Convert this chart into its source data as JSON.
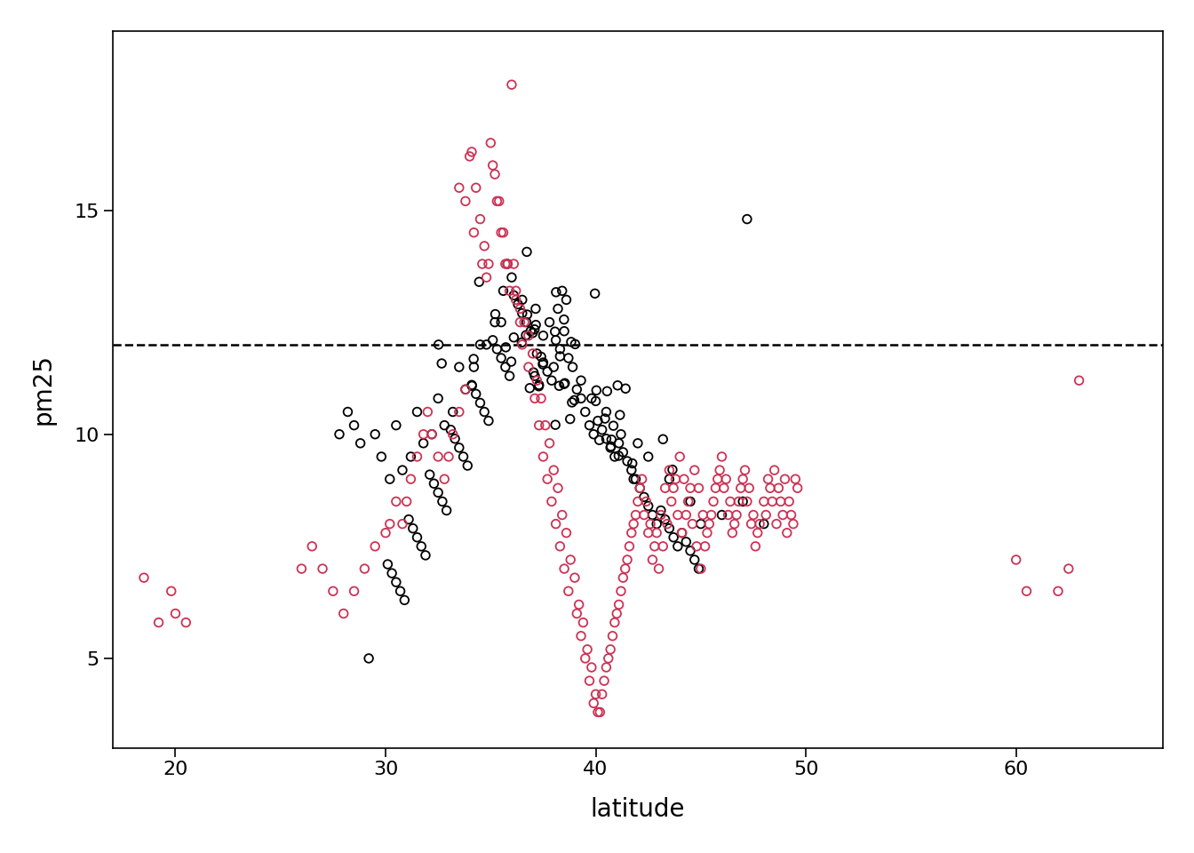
{
  "title": "",
  "xlabel": "latitude",
  "ylabel": "pm25",
  "xlim": [
    17,
    67
  ],
  "ylim": [
    3,
    19
  ],
  "xticks": [
    20,
    30,
    40,
    50,
    60
  ],
  "yticks": [
    5,
    10,
    15
  ],
  "hline_y": 12,
  "hline_style": "--",
  "hline_color": "#000000",
  "marker_size": 48,
  "marker_linewidth": 1.3,
  "background_color": "#ffffff",
  "east_color": "#000000",
  "west_color": "#cc3355",
  "east_points": [
    [
      34.19,
      11.68
    ],
    [
      35.72,
      11.94
    ],
    [
      40.75,
      9.88
    ],
    [
      37.29,
      11.07
    ],
    [
      38.49,
      12.56
    ],
    [
      41.42,
      11.02
    ],
    [
      38.08,
      10.21
    ],
    [
      32.67,
      11.58
    ],
    [
      36.1,
      12.16
    ],
    [
      41.09,
      9.52
    ],
    [
      39.96,
      13.14
    ],
    [
      36.74,
      12.67
    ],
    [
      43.65,
      9.21
    ],
    [
      37.48,
      11.56
    ],
    [
      36.86,
      11.03
    ],
    [
      43.2,
      9.89
    ],
    [
      32.52,
      12.0
    ],
    [
      40.54,
      10.96
    ],
    [
      38.49,
      11.12
    ],
    [
      36.72,
      14.07
    ],
    [
      34.11,
      11.08
    ],
    [
      41.74,
      9.35
    ],
    [
      37.0,
      12.26
    ],
    [
      37.14,
      12.8
    ],
    [
      39.02,
      12.01
    ],
    [
      38.11,
      13.17
    ],
    [
      38.06,
      12.29
    ],
    [
      36.68,
      12.21
    ],
    [
      38.3,
      11.74
    ],
    [
      38.98,
      10.76
    ],
    [
      40.03,
      10.98
    ],
    [
      38.83,
      12.06
    ],
    [
      37.4,
      11.73
    ],
    [
      41.15,
      10.43
    ],
    [
      38.26,
      11.08
    ],
    [
      40.0,
      10.74
    ],
    [
      37.04,
      11.38
    ],
    [
      40.72,
      9.73
    ],
    [
      37.15,
      12.44
    ],
    [
      40.44,
      10.35
    ],
    [
      35.98,
      11.62
    ],
    [
      34.45,
      13.4
    ],
    [
      41.04,
      11.09
    ],
    [
      37.09,
      12.34
    ],
    [
      38.87,
      10.71
    ],
    [
      35.22,
      12.68
    ],
    [
      38.78,
      10.34
    ],
    [
      40.84,
      10.19
    ],
    [
      40.17,
      9.87
    ],
    [
      38.53,
      11.14
    ],
    [
      36.48,
      12.05
    ],
    [
      41.8,
      9.0
    ],
    [
      38.0,
      11.5
    ],
    [
      37.5,
      12.2
    ],
    [
      36.5,
      13.0
    ],
    [
      35.5,
      12.5
    ],
    [
      34.5,
      12.0
    ],
    [
      33.5,
      11.5
    ],
    [
      32.5,
      10.8
    ],
    [
      31.5,
      10.5
    ],
    [
      30.5,
      10.2
    ],
    [
      29.5,
      10.0
    ],
    [
      42.5,
      9.5
    ],
    [
      43.5,
      9.0
    ],
    [
      44.5,
      8.5
    ],
    [
      45.0,
      8.0
    ],
    [
      46.0,
      8.2
    ],
    [
      47.0,
      8.5
    ],
    [
      48.0,
      8.0
    ],
    [
      38.2,
      12.8
    ],
    [
      38.4,
      13.2
    ],
    [
      38.6,
      13.0
    ],
    [
      37.8,
      12.5
    ],
    [
      37.2,
      11.8
    ],
    [
      39.3,
      11.2
    ],
    [
      39.8,
      10.8
    ],
    [
      40.5,
      10.5
    ],
    [
      41.2,
      10.0
    ],
    [
      42.0,
      9.8
    ],
    [
      36.0,
      13.5
    ],
    [
      35.8,
      13.8
    ],
    [
      35.6,
      13.2
    ],
    [
      35.2,
      12.5
    ],
    [
      34.8,
      12.0
    ],
    [
      34.2,
      11.5
    ],
    [
      33.8,
      11.0
    ],
    [
      33.2,
      10.5
    ],
    [
      32.8,
      10.2
    ],
    [
      32.2,
      10.0
    ],
    [
      31.8,
      9.8
    ],
    [
      31.2,
      9.5
    ],
    [
      30.8,
      9.2
    ],
    [
      30.2,
      9.0
    ],
    [
      29.8,
      9.5
    ],
    [
      29.2,
      5.0
    ],
    [
      47.2,
      14.8
    ],
    [
      38.1,
      12.1
    ],
    [
      38.3,
      11.9
    ],
    [
      38.5,
      12.3
    ],
    [
      38.7,
      11.7
    ],
    [
      38.9,
      11.5
    ],
    [
      39.1,
      11.0
    ],
    [
      39.3,
      10.8
    ],
    [
      39.5,
      10.5
    ],
    [
      39.7,
      10.2
    ],
    [
      39.9,
      10.0
    ],
    [
      40.1,
      10.3
    ],
    [
      40.3,
      10.1
    ],
    [
      40.5,
      9.9
    ],
    [
      40.7,
      9.7
    ],
    [
      40.9,
      9.5
    ],
    [
      41.1,
      9.8
    ],
    [
      41.3,
      9.6
    ],
    [
      41.5,
      9.4
    ],
    [
      41.7,
      9.2
    ],
    [
      41.9,
      9.0
    ],
    [
      42.1,
      8.8
    ],
    [
      42.3,
      8.6
    ],
    [
      42.5,
      8.4
    ],
    [
      42.7,
      8.2
    ],
    [
      42.9,
      8.0
    ],
    [
      43.1,
      8.3
    ],
    [
      43.3,
      8.1
    ],
    [
      43.5,
      7.9
    ],
    [
      43.7,
      7.7
    ],
    [
      43.9,
      7.5
    ],
    [
      44.1,
      7.8
    ],
    [
      44.3,
      7.6
    ],
    [
      44.5,
      7.4
    ],
    [
      44.7,
      7.2
    ],
    [
      44.9,
      7.0
    ],
    [
      37.1,
      11.3
    ],
    [
      37.3,
      11.1
    ],
    [
      37.5,
      11.6
    ],
    [
      37.7,
      11.4
    ],
    [
      37.9,
      11.2
    ],
    [
      36.1,
      13.1
    ],
    [
      36.3,
      12.9
    ],
    [
      36.5,
      12.7
    ],
    [
      36.7,
      12.5
    ],
    [
      36.9,
      12.3
    ],
    [
      35.1,
      12.1
    ],
    [
      35.3,
      11.9
    ],
    [
      35.5,
      11.7
    ],
    [
      35.7,
      11.5
    ],
    [
      35.9,
      11.3
    ],
    [
      34.1,
      11.1
    ],
    [
      34.3,
      10.9
    ],
    [
      34.5,
      10.7
    ],
    [
      34.7,
      10.5
    ],
    [
      34.9,
      10.3
    ],
    [
      33.1,
      10.1
    ],
    [
      33.3,
      9.9
    ],
    [
      33.5,
      9.7
    ],
    [
      33.7,
      9.5
    ],
    [
      33.9,
      9.3
    ],
    [
      32.1,
      9.1
    ],
    [
      32.3,
      8.9
    ],
    [
      32.5,
      8.7
    ],
    [
      32.7,
      8.5
    ],
    [
      32.9,
      8.3
    ],
    [
      31.1,
      8.1
    ],
    [
      31.3,
      7.9
    ],
    [
      31.5,
      7.7
    ],
    [
      31.7,
      7.5
    ],
    [
      31.9,
      7.3
    ],
    [
      30.1,
      7.1
    ],
    [
      30.3,
      6.9
    ],
    [
      30.5,
      6.7
    ],
    [
      30.7,
      6.5
    ],
    [
      30.9,
      6.3
    ],
    [
      28.5,
      10.2
    ],
    [
      28.8,
      9.8
    ],
    [
      28.2,
      10.5
    ],
    [
      27.8,
      10.0
    ]
  ],
  "west_points": [
    [
      18.5,
      6.8
    ],
    [
      19.2,
      5.8
    ],
    [
      19.8,
      6.5
    ],
    [
      20.0,
      6.0
    ],
    [
      20.5,
      5.8
    ],
    [
      33.5,
      15.5
    ],
    [
      33.8,
      15.2
    ],
    [
      34.0,
      16.2
    ],
    [
      34.1,
      16.3
    ],
    [
      34.3,
      15.5
    ],
    [
      34.5,
      14.8
    ],
    [
      34.7,
      14.2
    ],
    [
      34.9,
      13.8
    ],
    [
      35.0,
      16.5
    ],
    [
      35.1,
      16.0
    ],
    [
      35.2,
      15.8
    ],
    [
      35.3,
      15.2
    ],
    [
      35.5,
      14.5
    ],
    [
      35.7,
      13.8
    ],
    [
      35.9,
      13.2
    ],
    [
      36.0,
      17.8
    ],
    [
      36.1,
      13.8
    ],
    [
      36.2,
      13.2
    ],
    [
      36.4,
      12.8
    ],
    [
      36.6,
      12.5
    ],
    [
      36.8,
      12.2
    ],
    [
      37.0,
      11.8
    ],
    [
      37.2,
      11.2
    ],
    [
      37.4,
      10.8
    ],
    [
      37.6,
      10.2
    ],
    [
      37.8,
      9.8
    ],
    [
      38.0,
      9.2
    ],
    [
      38.2,
      8.8
    ],
    [
      38.4,
      8.2
    ],
    [
      38.6,
      7.8
    ],
    [
      38.8,
      7.2
    ],
    [
      39.0,
      6.8
    ],
    [
      39.2,
      6.2
    ],
    [
      39.4,
      5.8
    ],
    [
      39.6,
      5.2
    ],
    [
      39.8,
      4.8
    ],
    [
      40.0,
      4.2
    ],
    [
      40.2,
      3.8
    ],
    [
      40.4,
      4.5
    ],
    [
      40.6,
      5.0
    ],
    [
      40.8,
      5.5
    ],
    [
      41.0,
      6.0
    ],
    [
      41.2,
      6.5
    ],
    [
      41.4,
      7.0
    ],
    [
      41.6,
      7.5
    ],
    [
      41.8,
      8.0
    ],
    [
      42.0,
      8.5
    ],
    [
      42.2,
      9.0
    ],
    [
      42.4,
      8.5
    ],
    [
      42.6,
      8.0
    ],
    [
      42.8,
      7.5
    ],
    [
      43.0,
      7.0
    ],
    [
      43.2,
      7.5
    ],
    [
      43.4,
      8.0
    ],
    [
      43.6,
      8.5
    ],
    [
      43.8,
      9.0
    ],
    [
      44.0,
      9.5
    ],
    [
      44.2,
      9.0
    ],
    [
      44.4,
      8.5
    ],
    [
      44.6,
      8.0
    ],
    [
      44.8,
      7.5
    ],
    [
      45.0,
      7.0
    ],
    [
      45.2,
      7.5
    ],
    [
      45.4,
      8.0
    ],
    [
      45.6,
      8.5
    ],
    [
      45.8,
      9.0
    ],
    [
      46.0,
      9.5
    ],
    [
      46.2,
      9.0
    ],
    [
      46.4,
      8.5
    ],
    [
      46.6,
      8.0
    ],
    [
      46.8,
      8.5
    ],
    [
      47.0,
      9.0
    ],
    [
      47.2,
      8.5
    ],
    [
      47.4,
      8.0
    ],
    [
      47.6,
      7.5
    ],
    [
      47.8,
      8.0
    ],
    [
      48.0,
      8.5
    ],
    [
      48.2,
      9.0
    ],
    [
      48.4,
      8.5
    ],
    [
      48.6,
      8.0
    ],
    [
      48.8,
      8.5
    ],
    [
      49.0,
      9.0
    ],
    [
      49.2,
      8.5
    ],
    [
      49.4,
      8.0
    ],
    [
      49.5,
      9.0
    ],
    [
      60.0,
      7.2
    ],
    [
      60.5,
      6.5
    ],
    [
      62.0,
      6.5
    ],
    [
      62.5,
      7.0
    ],
    [
      63.0,
      11.2
    ],
    [
      30.5,
      8.5
    ],
    [
      30.8,
      8.0
    ],
    [
      31.0,
      8.5
    ],
    [
      31.2,
      9.0
    ],
    [
      31.5,
      9.5
    ],
    [
      31.8,
      10.0
    ],
    [
      32.0,
      10.5
    ],
    [
      32.2,
      10.0
    ],
    [
      32.5,
      9.5
    ],
    [
      32.8,
      9.0
    ],
    [
      33.0,
      9.5
    ],
    [
      33.2,
      10.0
    ],
    [
      33.5,
      10.5
    ],
    [
      33.8,
      11.0
    ],
    [
      34.2,
      14.5
    ],
    [
      34.6,
      13.8
    ],
    [
      35.4,
      15.2
    ],
    [
      35.6,
      14.5
    ],
    [
      35.8,
      13.8
    ],
    [
      36.2,
      13.0
    ],
    [
      36.4,
      12.5
    ],
    [
      36.5,
      12.0
    ],
    [
      36.8,
      11.5
    ],
    [
      37.1,
      10.8
    ],
    [
      37.3,
      10.2
    ],
    [
      37.5,
      9.5
    ],
    [
      37.7,
      9.0
    ],
    [
      37.9,
      8.5
    ],
    [
      38.1,
      8.0
    ],
    [
      38.3,
      7.5
    ],
    [
      38.5,
      7.0
    ],
    [
      38.7,
      6.5
    ],
    [
      39.1,
      6.0
    ],
    [
      39.3,
      5.5
    ],
    [
      39.5,
      5.0
    ],
    [
      39.7,
      4.5
    ],
    [
      39.9,
      4.0
    ],
    [
      40.1,
      3.8
    ],
    [
      40.3,
      4.2
    ],
    [
      40.5,
      4.8
    ],
    [
      40.7,
      5.2
    ],
    [
      40.9,
      5.8
    ],
    [
      41.1,
      6.2
    ],
    [
      41.3,
      6.8
    ],
    [
      41.5,
      7.2
    ],
    [
      41.7,
      7.8
    ],
    [
      41.9,
      8.2
    ],
    [
      42.1,
      8.8
    ],
    [
      42.3,
      8.2
    ],
    [
      42.5,
      7.8
    ],
    [
      42.7,
      7.2
    ],
    [
      42.9,
      7.8
    ],
    [
      43.1,
      8.2
    ],
    [
      43.3,
      8.8
    ],
    [
      43.5,
      9.2
    ],
    [
      43.7,
      8.8
    ],
    [
      43.9,
      8.2
    ],
    [
      44.1,
      7.8
    ],
    [
      44.3,
      8.2
    ],
    [
      44.5,
      8.8
    ],
    [
      44.7,
      9.2
    ],
    [
      44.9,
      8.8
    ],
    [
      45.1,
      8.2
    ],
    [
      45.3,
      7.8
    ],
    [
      45.5,
      8.2
    ],
    [
      45.7,
      8.8
    ],
    [
      45.9,
      9.2
    ],
    [
      46.1,
      8.8
    ],
    [
      46.3,
      8.2
    ],
    [
      46.5,
      7.8
    ],
    [
      46.7,
      8.2
    ],
    [
      46.9,
      8.8
    ],
    [
      47.1,
      9.2
    ],
    [
      47.3,
      8.8
    ],
    [
      47.5,
      8.2
    ],
    [
      47.7,
      7.8
    ],
    [
      48.1,
      8.2
    ],
    [
      48.3,
      8.8
    ],
    [
      48.5,
      9.2
    ],
    [
      48.7,
      8.8
    ],
    [
      48.9,
      8.2
    ],
    [
      49.1,
      7.8
    ],
    [
      49.3,
      8.2
    ],
    [
      49.6,
      8.8
    ],
    [
      26.0,
      7.0
    ],
    [
      26.5,
      7.5
    ],
    [
      27.0,
      7.0
    ],
    [
      27.5,
      6.5
    ],
    [
      28.0,
      6.0
    ],
    [
      28.5,
      6.5
    ],
    [
      29.0,
      7.0
    ],
    [
      29.5,
      7.5
    ],
    [
      30.0,
      7.8
    ],
    [
      30.2,
      8.0
    ],
    [
      34.8,
      13.5
    ]
  ]
}
